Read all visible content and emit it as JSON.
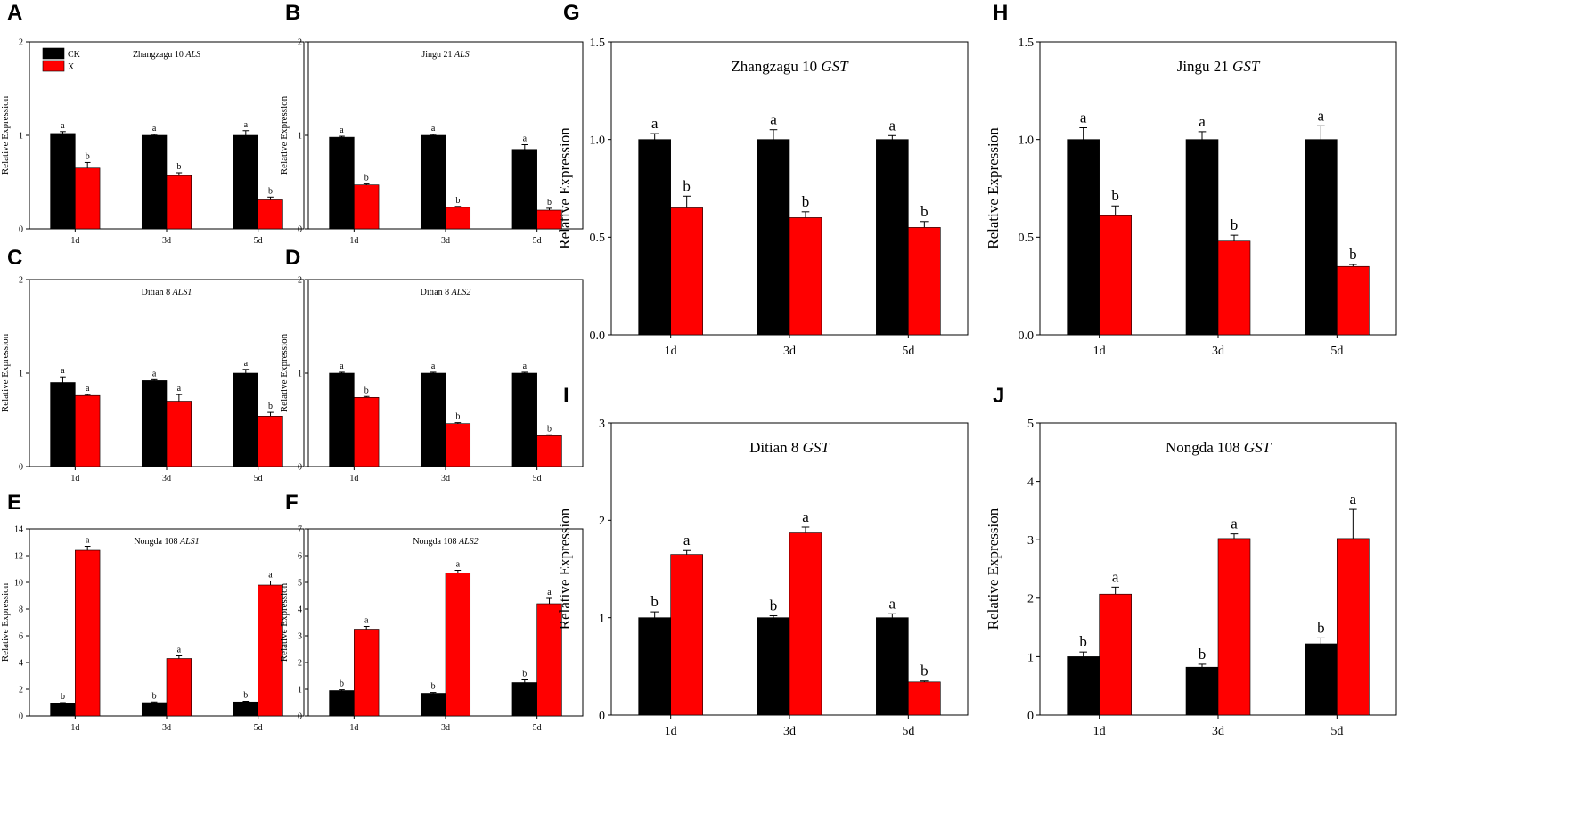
{
  "colors": {
    "ck": "#000000",
    "x": "#ff0000",
    "axis": "#000000"
  },
  "legend": {
    "items": [
      {
        "label": "CK",
        "color": "#000000"
      },
      {
        "label": "X",
        "color": "#ff0000"
      }
    ],
    "placement": "top-left of panel A"
  },
  "chart_data": [
    {
      "panel": "A",
      "type": "bar",
      "title_prefix": "Zhangzagu 10 ",
      "title_gene": "ALS",
      "categories": [
        "1d",
        "3d",
        "5d"
      ],
      "ylabel": "Relative Expression",
      "ylim": [
        0,
        2
      ],
      "yticks": [
        0,
        1,
        2
      ],
      "ytick_labels": [
        "0",
        "1",
        "2"
      ],
      "show_legend": true,
      "series": [
        {
          "name": "CK",
          "values": [
            1.02,
            1.0,
            1.0
          ],
          "errors": [
            0.02,
            0.01,
            0.05
          ],
          "letters": [
            "a",
            "a",
            "a"
          ]
        },
        {
          "name": "X",
          "values": [
            0.65,
            0.57,
            0.31
          ],
          "errors": [
            0.06,
            0.03,
            0.03
          ],
          "letters": [
            "b",
            "b",
            "b"
          ]
        }
      ]
    },
    {
      "panel": "B",
      "type": "bar",
      "title_prefix": "Jingu 21 ",
      "title_gene": "ALS",
      "categories": [
        "1d",
        "3d",
        "5d"
      ],
      "ylabel": "Relative Expression",
      "ylim": [
        0,
        2
      ],
      "yticks": [
        0,
        1,
        2
      ],
      "ytick_labels": [
        "0",
        "1",
        "2"
      ],
      "series": [
        {
          "name": "CK",
          "values": [
            0.98,
            1.0,
            0.85
          ],
          "errors": [
            0.01,
            0.01,
            0.05
          ],
          "letters": [
            "a",
            "a",
            "a"
          ]
        },
        {
          "name": "X",
          "values": [
            0.47,
            0.23,
            0.2
          ],
          "errors": [
            0.01,
            0.01,
            0.02
          ],
          "letters": [
            "b",
            "b",
            "b"
          ]
        }
      ]
    },
    {
      "panel": "C",
      "type": "bar",
      "title_prefix": "Ditian 8 ",
      "title_gene": "ALS1",
      "categories": [
        "1d",
        "3d",
        "5d"
      ],
      "ylabel": "Relative Expression",
      "ylim": [
        0,
        2
      ],
      "yticks": [
        0,
        1,
        2
      ],
      "ytick_labels": [
        "0",
        "1",
        "2"
      ],
      "series": [
        {
          "name": "CK",
          "values": [
            0.9,
            0.92,
            1.0
          ],
          "errors": [
            0.06,
            0.01,
            0.04
          ],
          "letters": [
            "a",
            "a",
            "a"
          ]
        },
        {
          "name": "X",
          "values": [
            0.76,
            0.7,
            0.54
          ],
          "errors": [
            0.01,
            0.07,
            0.04
          ],
          "letters": [
            "a",
            "a",
            "b"
          ]
        }
      ]
    },
    {
      "panel": "D",
      "type": "bar",
      "title_prefix": "Ditian 8 ",
      "title_gene": "ALS2",
      "categories": [
        "1d",
        "3d",
        "5d"
      ],
      "ylabel": "Relative Expression",
      "ylim": [
        0,
        2
      ],
      "yticks": [
        0,
        1,
        2
      ],
      "ytick_labels": [
        "0",
        "1",
        "2"
      ],
      "series": [
        {
          "name": "CK",
          "values": [
            1.0,
            1.0,
            1.0
          ],
          "errors": [
            0.01,
            0.01,
            0.01
          ],
          "letters": [
            "a",
            "a",
            "a"
          ]
        },
        {
          "name": "X",
          "values": [
            0.74,
            0.46,
            0.33
          ],
          "errors": [
            0.01,
            0.01,
            0.01
          ],
          "letters": [
            "b",
            "b",
            "b"
          ]
        }
      ]
    },
    {
      "panel": "E",
      "type": "bar",
      "title_prefix": "Nongda 108 ",
      "title_gene": "ALS1",
      "categories": [
        "1d",
        "3d",
        "5d"
      ],
      "ylabel": "Relative Expression",
      "ylim": [
        0,
        14
      ],
      "yticks": [
        0,
        2,
        4,
        6,
        8,
        10,
        12,
        14
      ],
      "ytick_labels": [
        "0",
        "2",
        "4",
        "6",
        "8",
        "10",
        "12",
        "14"
      ],
      "series": [
        {
          "name": "CK",
          "values": [
            0.95,
            1.0,
            1.05
          ],
          "errors": [
            0.05,
            0.05,
            0.05
          ],
          "letters": [
            "b",
            "b",
            "b"
          ]
        },
        {
          "name": "X",
          "values": [
            12.4,
            4.3,
            9.8
          ],
          "errors": [
            0.3,
            0.2,
            0.3
          ],
          "letters": [
            "a",
            "a",
            "a"
          ]
        }
      ]
    },
    {
      "panel": "F",
      "type": "bar",
      "title_prefix": "Nongda 108 ",
      "title_gene": "ALS2",
      "categories": [
        "1d",
        "3d",
        "5d"
      ],
      "ylabel": "Relative Expression",
      "ylim": [
        0,
        7
      ],
      "yticks": [
        0,
        1,
        2,
        3,
        4,
        5,
        6,
        7
      ],
      "ytick_labels": [
        "0",
        "1",
        "2",
        "3",
        "4",
        "5",
        "6",
        "7"
      ],
      "series": [
        {
          "name": "CK",
          "values": [
            0.95,
            0.85,
            1.25
          ],
          "errors": [
            0.03,
            0.03,
            0.1
          ],
          "letters": [
            "b",
            "b",
            "b"
          ]
        },
        {
          "name": "X",
          "values": [
            3.25,
            5.35,
            4.2
          ],
          "errors": [
            0.1,
            0.1,
            0.2
          ],
          "letters": [
            "a",
            "a",
            "a"
          ]
        }
      ]
    },
    {
      "panel": "G",
      "type": "bar",
      "title_prefix": "Zhangzagu 10 ",
      "title_gene": "GST",
      "categories": [
        "1d",
        "3d",
        "5d"
      ],
      "ylabel": "Relative Expression",
      "ylim": [
        0,
        1.5
      ],
      "yticks": [
        0,
        0.5,
        1.0,
        1.5
      ],
      "ytick_labels": [
        "0.0",
        "0.5",
        "1.0",
        "1.5"
      ],
      "series": [
        {
          "name": "CK",
          "values": [
            1.0,
            1.0,
            1.0
          ],
          "errors": [
            0.03,
            0.05,
            0.02
          ],
          "letters": [
            "a",
            "a",
            "a"
          ]
        },
        {
          "name": "X",
          "values": [
            0.65,
            0.6,
            0.55
          ],
          "errors": [
            0.06,
            0.03,
            0.03
          ],
          "letters": [
            "b",
            "b",
            "b"
          ]
        }
      ]
    },
    {
      "panel": "H",
      "type": "bar",
      "title_prefix": "Jingu 21 ",
      "title_gene": "GST",
      "categories": [
        "1d",
        "3d",
        "5d"
      ],
      "ylabel": "Relative Expression",
      "ylim": [
        0,
        1.5
      ],
      "yticks": [
        0,
        0.5,
        1.0,
        1.5
      ],
      "ytick_labels": [
        "0.0",
        "0.5",
        "1.0",
        "1.5"
      ],
      "series": [
        {
          "name": "CK",
          "values": [
            1.0,
            1.0,
            1.0
          ],
          "errors": [
            0.06,
            0.04,
            0.07
          ],
          "letters": [
            "a",
            "a",
            "a"
          ]
        },
        {
          "name": "X",
          "values": [
            0.61,
            0.48,
            0.35
          ],
          "errors": [
            0.05,
            0.03,
            0.01
          ],
          "letters": [
            "b",
            "b",
            "b"
          ]
        }
      ]
    },
    {
      "panel": "I",
      "type": "bar",
      "title_prefix": "Ditian 8 ",
      "title_gene": "GST",
      "categories": [
        "1d",
        "3d",
        "5d"
      ],
      "ylabel": "Relative Expression",
      "ylim": [
        0,
        3
      ],
      "yticks": [
        0,
        1,
        2,
        3
      ],
      "ytick_labels": [
        "0",
        "1",
        "2",
        "3"
      ],
      "series": [
        {
          "name": "CK",
          "values": [
            1.0,
            1.0,
            1.0
          ],
          "errors": [
            0.06,
            0.02,
            0.04
          ],
          "letters": [
            "b",
            "b",
            "a"
          ]
        },
        {
          "name": "X",
          "values": [
            1.65,
            1.87,
            0.34
          ],
          "errors": [
            0.04,
            0.06,
            0.01
          ],
          "letters": [
            "a",
            "a",
            "b"
          ]
        }
      ]
    },
    {
      "panel": "J",
      "type": "bar",
      "title_prefix": "Nongda 108 ",
      "title_gene": "GST",
      "categories": [
        "1d",
        "3d",
        "5d"
      ],
      "ylabel": "Relative Expression",
      "ylim": [
        0,
        5
      ],
      "yticks": [
        0,
        1,
        2,
        3,
        4,
        5
      ],
      "ytick_labels": [
        "0",
        "1",
        "2",
        "3",
        "4",
        "5"
      ],
      "series": [
        {
          "name": "CK",
          "values": [
            1.0,
            0.82,
            1.22
          ],
          "errors": [
            0.08,
            0.05,
            0.1
          ],
          "letters": [
            "b",
            "b",
            "b"
          ]
        },
        {
          "name": "X",
          "values": [
            2.07,
            3.02,
            3.02
          ],
          "errors": [
            0.12,
            0.08,
            0.5
          ],
          "letters": [
            "a",
            "a",
            "a"
          ]
        }
      ]
    }
  ]
}
